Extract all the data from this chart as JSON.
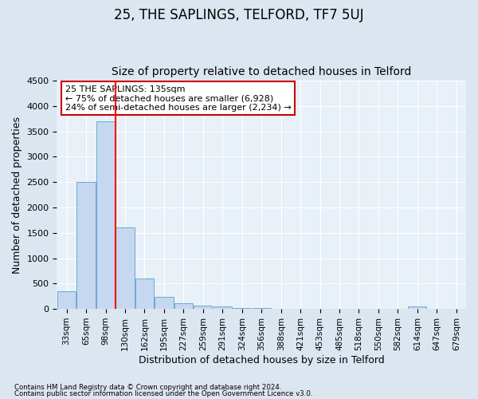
{
  "title": "25, THE SAPLINGS, TELFORD, TF7 5UJ",
  "subtitle": "Size of property relative to detached houses in Telford",
  "xlabel": "Distribution of detached houses by size in Telford",
  "ylabel": "Number of detached properties",
  "footnote1": "Contains HM Land Registry data © Crown copyright and database right 2024.",
  "footnote2": "Contains public sector information licensed under the Open Government Licence v3.0.",
  "categories": [
    "33sqm",
    "65sqm",
    "98sqm",
    "130sqm",
    "162sqm",
    "195sqm",
    "227sqm",
    "259sqm",
    "291sqm",
    "324sqm",
    "356sqm",
    "388sqm",
    "421sqm",
    "453sqm",
    "485sqm",
    "518sqm",
    "550sqm",
    "582sqm",
    "614sqm",
    "647sqm",
    "679sqm"
  ],
  "values": [
    350,
    2500,
    3700,
    1600,
    600,
    230,
    110,
    65,
    50,
    25,
    15,
    8,
    5,
    4,
    3,
    2,
    1,
    1,
    50,
    1,
    1
  ],
  "bar_color": "#c5d8ef",
  "bar_edge_color": "#6aaad4",
  "red_line_x": 3.0,
  "annotation_line1": "25 THE SAPLINGS: 135sqm",
  "annotation_line2": "← 75% of detached houses are smaller (6,928)",
  "annotation_line3": "24% of semi-detached houses are larger (2,234) →",
  "annotation_box_color": "#ffffff",
  "annotation_box_edge_color": "#cc0000",
  "ylim": [
    0,
    4500
  ],
  "yticks": [
    0,
    500,
    1000,
    1500,
    2000,
    2500,
    3000,
    3500,
    4000,
    4500
  ],
  "background_color": "#dce6f1",
  "plot_background_color": "#e8f0f8",
  "grid_color": "#ffffff",
  "title_fontsize": 12,
  "subtitle_fontsize": 10,
  "tick_fontsize": 7.5,
  "axis_label_fontsize": 9,
  "annotation_fontsize": 8
}
